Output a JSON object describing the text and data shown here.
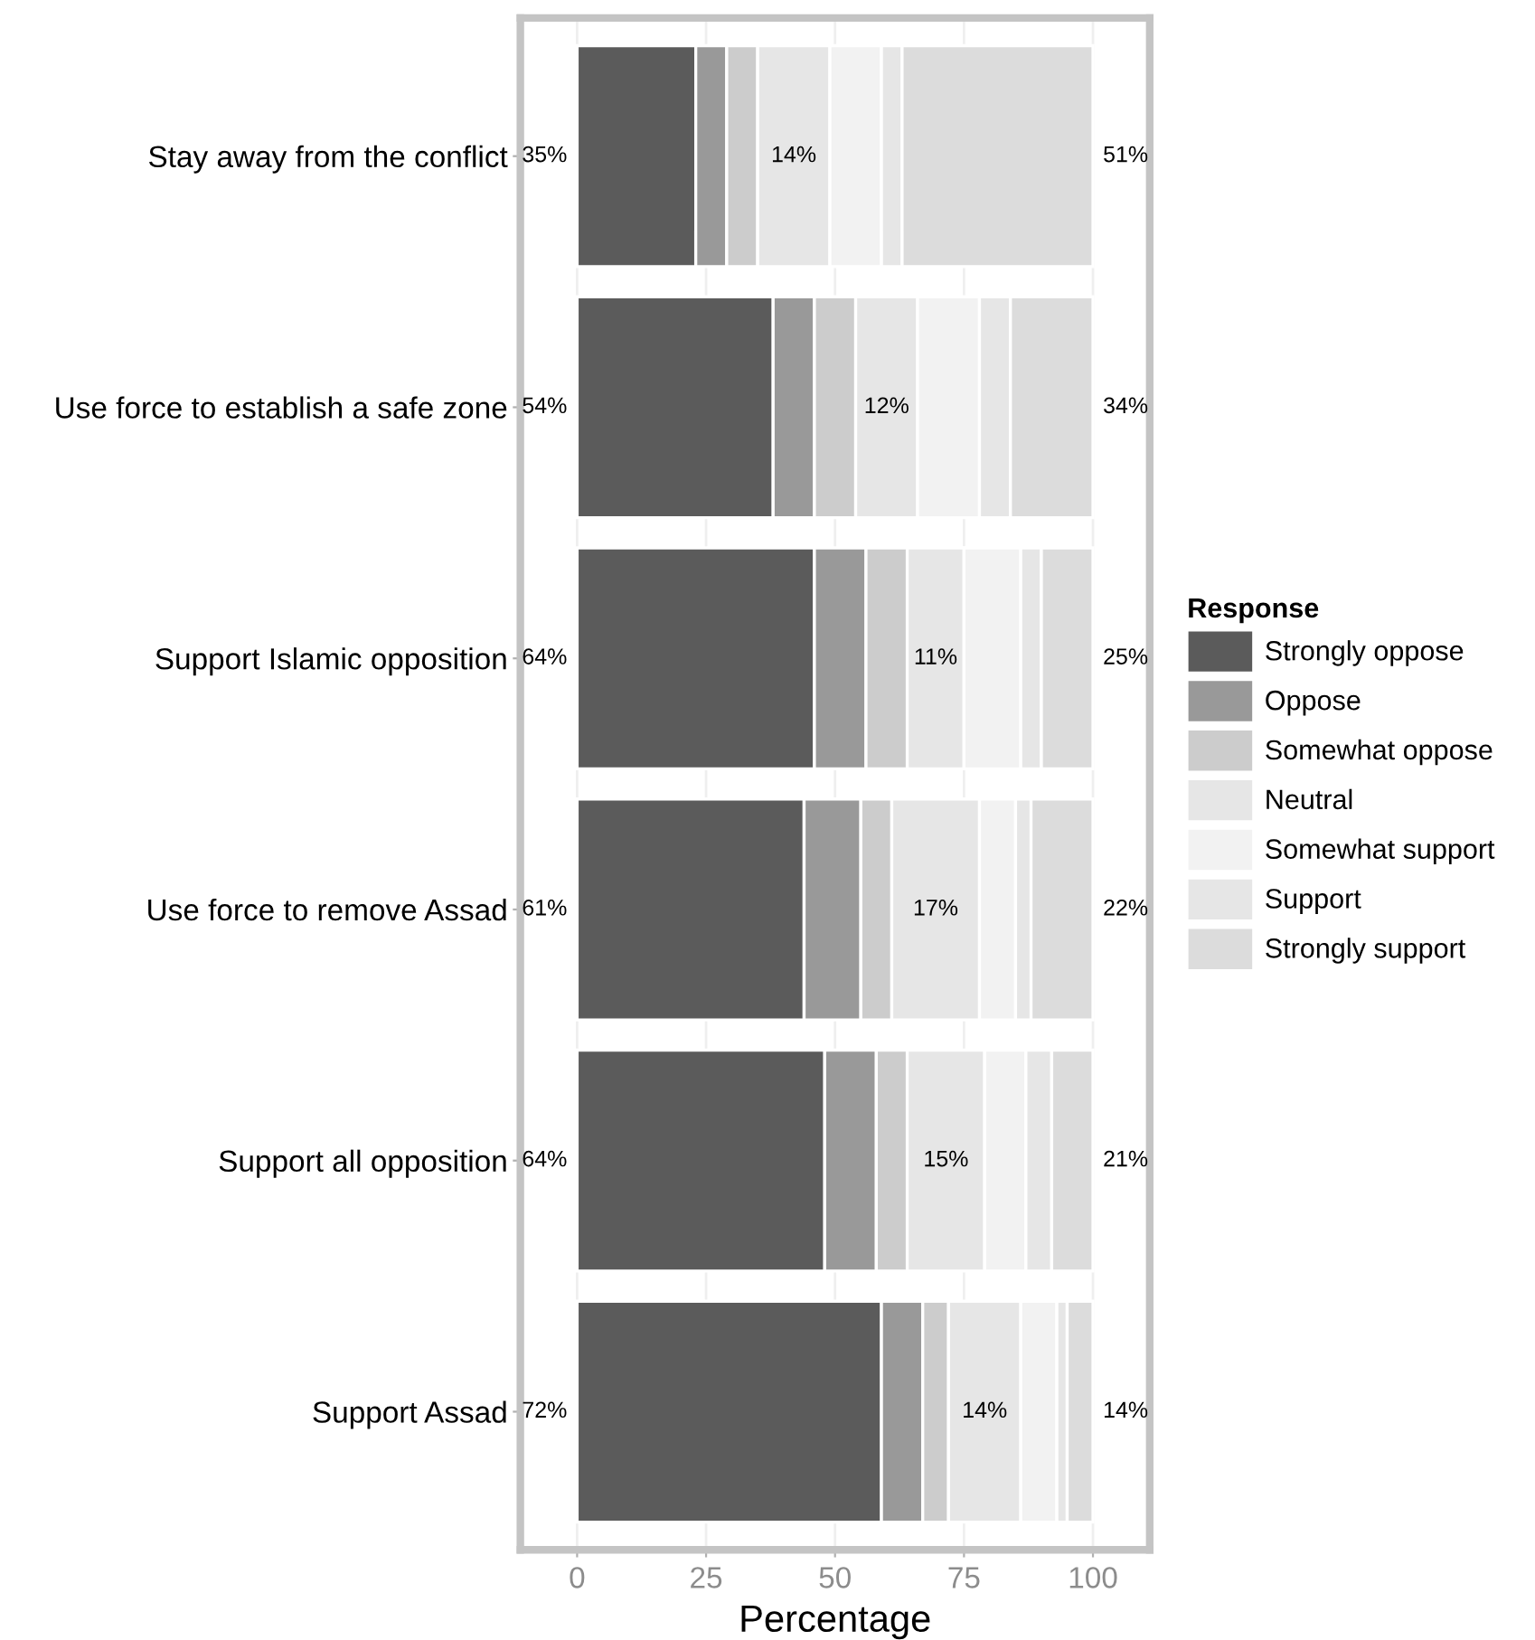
{
  "chart_data": {
    "type": "bar",
    "orientation": "horizontal",
    "stacked": true,
    "xlabel": "Percentage",
    "legend_title": "Response",
    "legend": "right",
    "grid": "x",
    "categories": [
      "Stay away from the conflict",
      "Use force to establish a safe zone",
      "Support Islamic opposition",
      "Use force to remove Assad",
      "Support all opposition",
      "Support Assad"
    ],
    "xlim": [
      -11,
      111
    ],
    "xticks": [
      0,
      25,
      50,
      75,
      100
    ],
    "series": [
      {
        "name": "Strongly oppose",
        "color": "#5b5b5b",
        "values": [
          23,
          38,
          46,
          44,
          48,
          59
        ]
      },
      {
        "name": "Oppose",
        "color": "#999999",
        "values": [
          6,
          8,
          10,
          11,
          10,
          8
        ]
      },
      {
        "name": "Somewhat oppose",
        "color": "#cccccc",
        "values": [
          6,
          8,
          8,
          6,
          6,
          5
        ]
      },
      {
        "name": "Neutral",
        "color": "#e6e6e6",
        "values": [
          14,
          12,
          11,
          17,
          15,
          14
        ]
      },
      {
        "name": "Somewhat support",
        "color": "#f2f2f2",
        "values": [
          10,
          12,
          11,
          7,
          8,
          7
        ]
      },
      {
        "name": "Support",
        "color": "#e6e6e6",
        "values": [
          4,
          6,
          4,
          3,
          5,
          2
        ]
      },
      {
        "name": "Strongly support",
        "color": "#dcdcdc",
        "values": [
          37,
          16,
          10,
          12,
          8,
          5
        ]
      }
    ],
    "annotations": [
      "35%",
      "14%",
      "51%",
      "54%",
      "12%",
      "34%",
      "64%",
      "11%",
      "25%",
      "61%",
      "17%",
      "22%",
      "64%",
      "15%",
      "21%",
      "72%",
      "14%",
      "14%"
    ]
  }
}
